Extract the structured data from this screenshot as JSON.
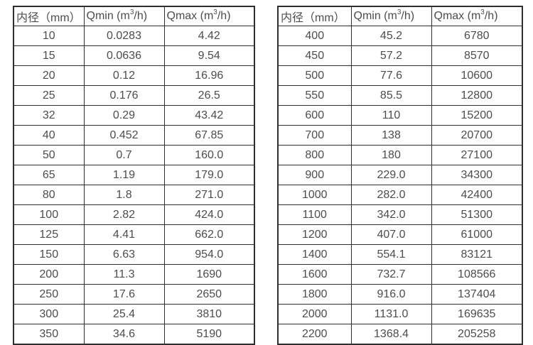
{
  "page": {
    "background_color": "#ffffff",
    "border_color": "#2e2e2e",
    "text_color": "#4d4d4d"
  },
  "tables": [
    {
      "name": "flow-range-small-diameters",
      "headers": [
        {
          "pre": "内径（mm）",
          "sup": "",
          "post": ""
        },
        {
          "pre": "Qmin (m",
          "sup": "3",
          "post": "/h)"
        },
        {
          "pre": "Qmax (m",
          "sup": "3",
          "post": "/h)"
        }
      ],
      "rows": [
        [
          "10",
          "0.0283",
          "4.42"
        ],
        [
          "15",
          "0.0636",
          "9.54"
        ],
        [
          "20",
          "0.12",
          "16.96"
        ],
        [
          "25",
          "0.176",
          "26.5"
        ],
        [
          "32",
          "0.29",
          "43.42"
        ],
        [
          "40",
          "0.452",
          "67.85"
        ],
        [
          "50",
          "0.7",
          "160.0"
        ],
        [
          "65",
          "1.19",
          "179.0"
        ],
        [
          "80",
          "1.8",
          "271.0"
        ],
        [
          "100",
          "2.82",
          "424.0"
        ],
        [
          "125",
          "4.41",
          "662.0"
        ],
        [
          "150",
          "6.63",
          "954.0"
        ],
        [
          "200",
          "11.3",
          "1690"
        ],
        [
          "250",
          "17.6",
          "2650"
        ],
        [
          "300",
          "25.4",
          "3810"
        ],
        [
          "350",
          "34.6",
          "5190"
        ]
      ]
    },
    {
      "name": "flow-range-large-diameters",
      "headers": [
        {
          "pre": "内径（mm）",
          "sup": "",
          "post": ""
        },
        {
          "pre": "Qmin (m",
          "sup": "3",
          "post": "/h)"
        },
        {
          "pre": "Qmax (m",
          "sup": "3",
          "post": "/h)"
        }
      ],
      "rows": [
        [
          "400",
          "45.2",
          "6780"
        ],
        [
          "450",
          "57.2",
          "8570"
        ],
        [
          "500",
          "77.6",
          "10600"
        ],
        [
          "550",
          "85.5",
          "12800"
        ],
        [
          "600",
          "110",
          "15200"
        ],
        [
          "700",
          "138",
          "20700"
        ],
        [
          "800",
          "180",
          "27100"
        ],
        [
          "900",
          "229.0",
          "34300"
        ],
        [
          "1000",
          "282.0",
          "42400"
        ],
        [
          "1100",
          "342.0",
          "51300"
        ],
        [
          "1200",
          "407.0",
          "61000"
        ],
        [
          "1400",
          "554.1",
          "83121"
        ],
        [
          "1600",
          "732.7",
          "108566"
        ],
        [
          "1800",
          "916.0",
          "137404"
        ],
        [
          "2000",
          "1131.0",
          "169635"
        ],
        [
          "2200",
          "1368.4",
          "205258"
        ]
      ]
    }
  ]
}
